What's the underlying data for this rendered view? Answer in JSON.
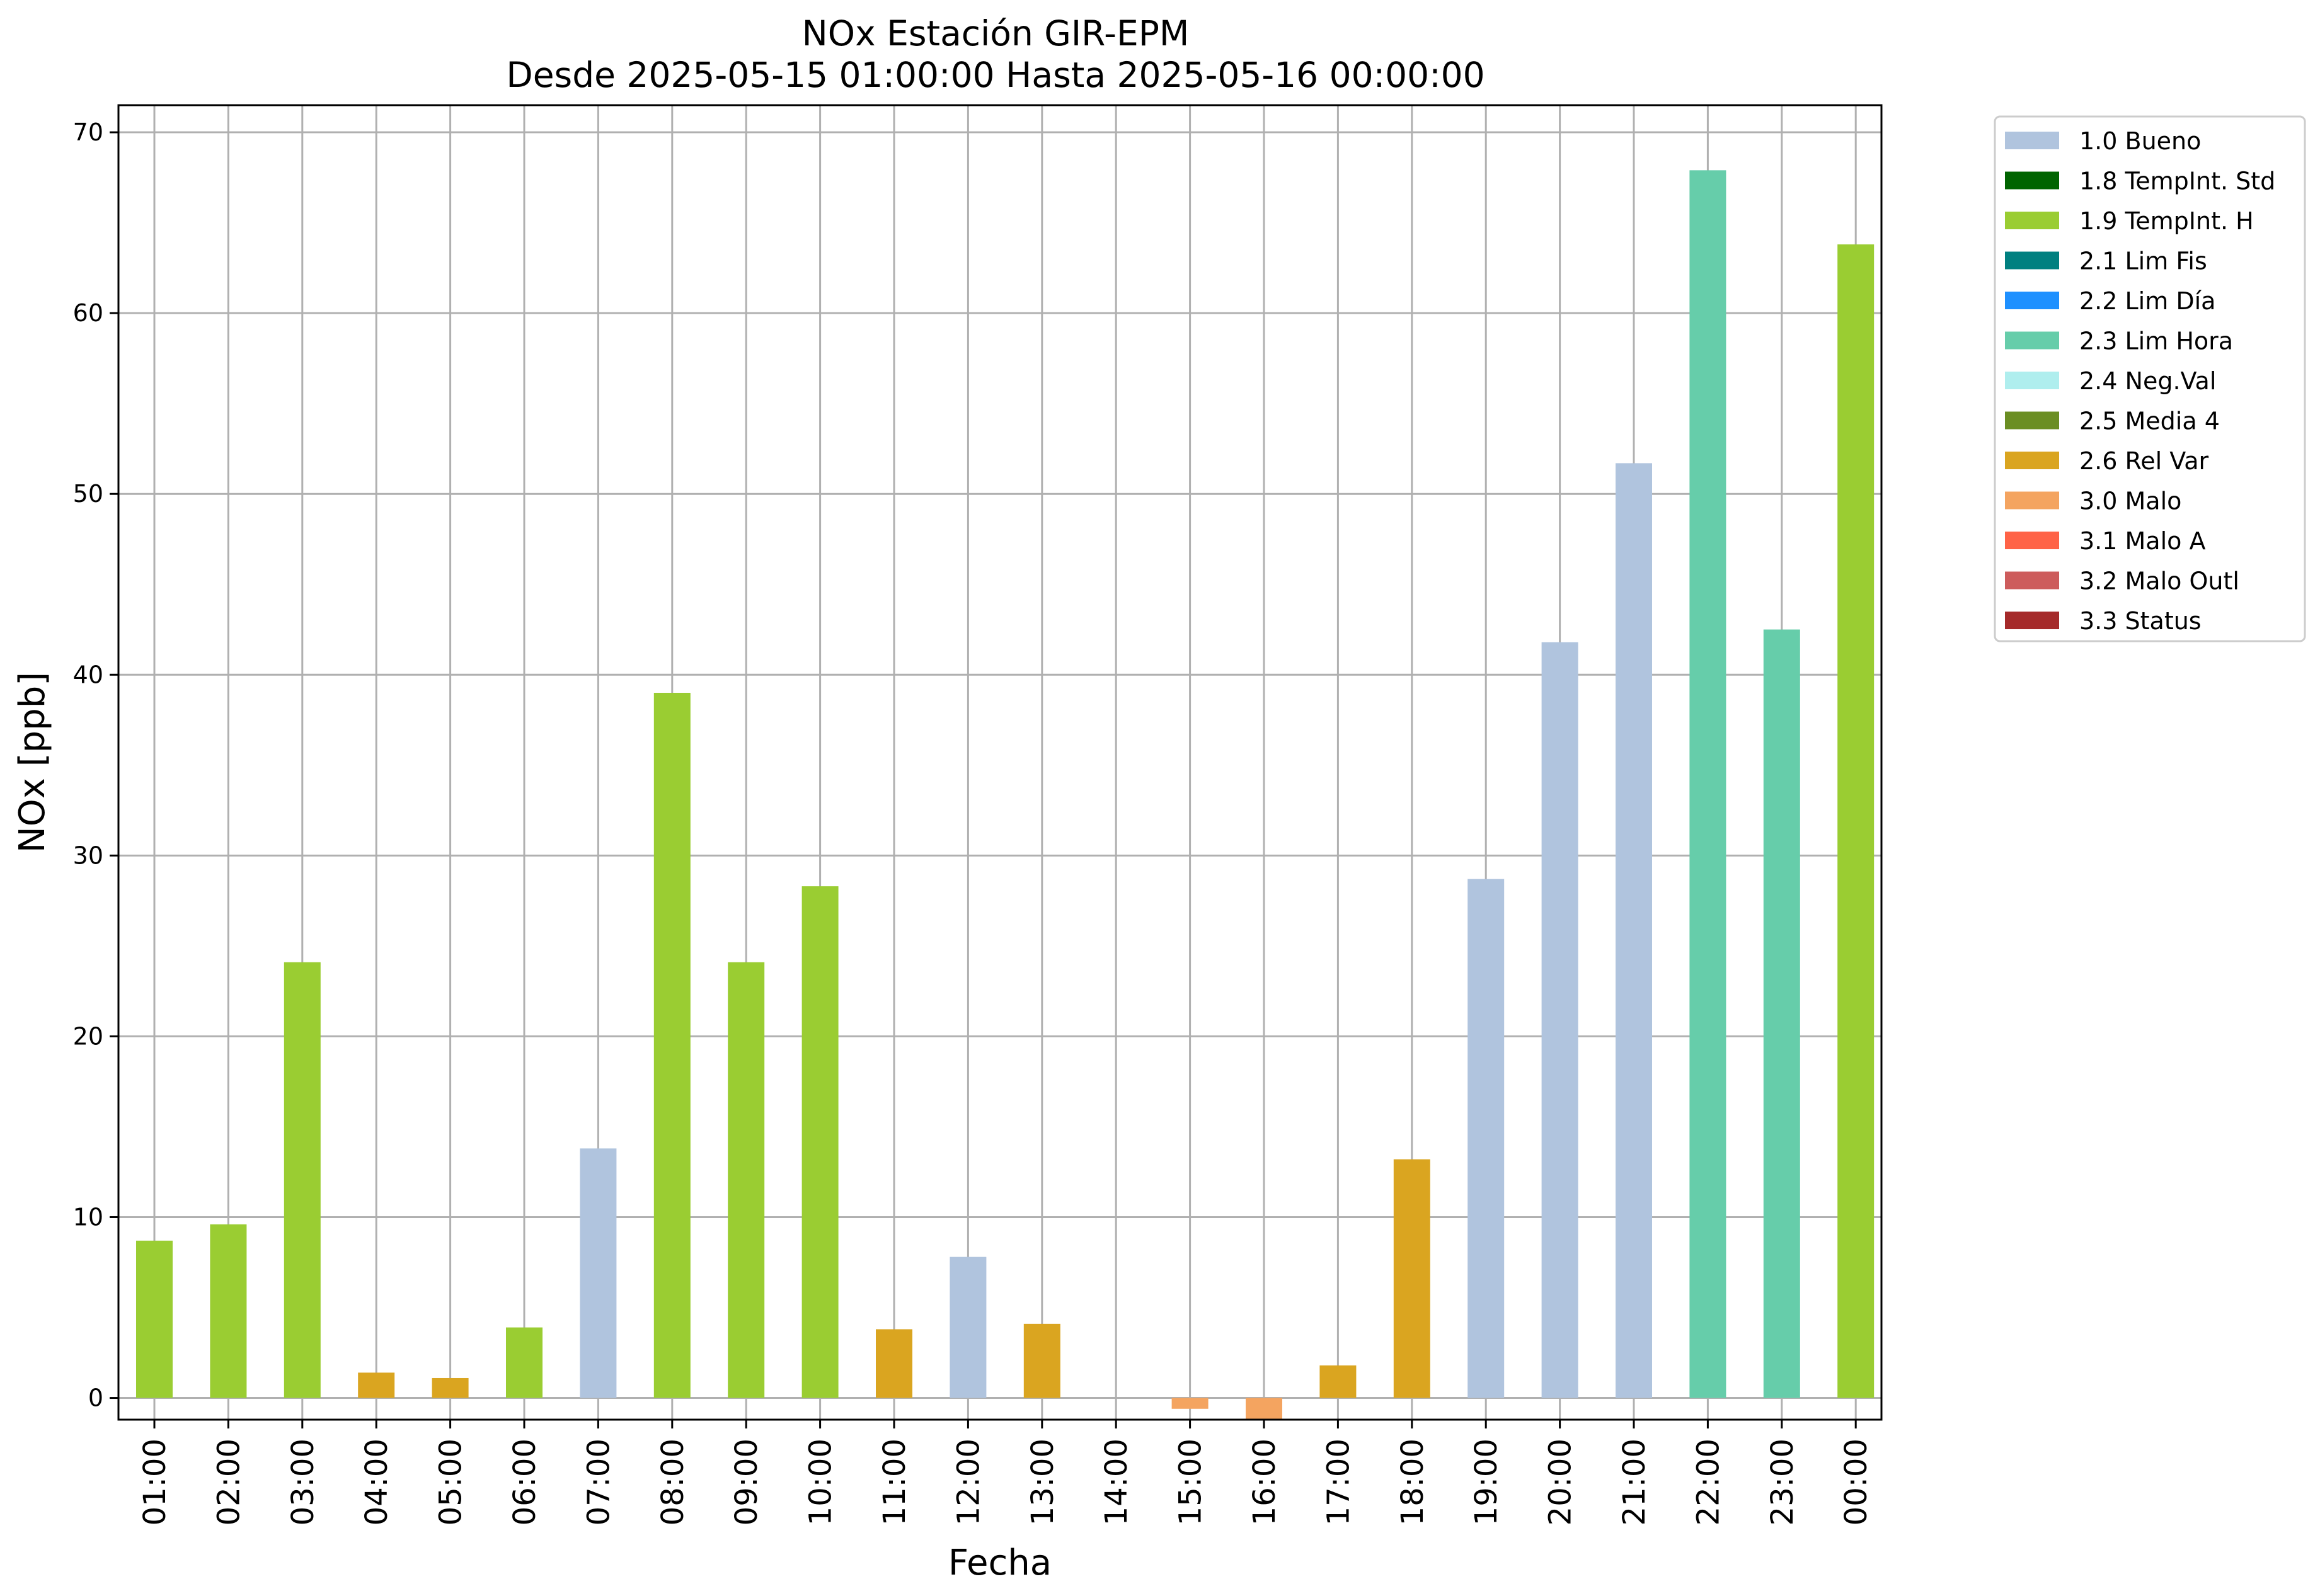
{
  "chart_data": {
    "type": "bar",
    "title_lines": [
      "NOx Estación GIR-EPM",
      "Desde 2025-05-15 01:00:00 Hasta 2025-05-16 00:00:00"
    ],
    "xlabel": "Fecha",
    "ylabel": "NOx [ppb]",
    "ylim": [
      -1.2,
      71.5
    ],
    "yticks": [
      0,
      10,
      20,
      30,
      40,
      50,
      60,
      70
    ],
    "grid": true,
    "legend_position": "upper right, outside plot",
    "categories": [
      "01:00",
      "02:00",
      "03:00",
      "04:00",
      "05:00",
      "06:00",
      "07:00",
      "08:00",
      "09:00",
      "10:00",
      "11:00",
      "12:00",
      "13:00",
      "14:00",
      "15:00",
      "16:00",
      "17:00",
      "18:00",
      "19:00",
      "20:00",
      "21:00",
      "22:00",
      "23:00",
      "00:00"
    ],
    "values": [
      8.7,
      9.6,
      24.1,
      1.4,
      1.1,
      3.9,
      13.8,
      39.0,
      24.1,
      28.3,
      3.8,
      7.8,
      4.1,
      null,
      -0.6,
      -1.2,
      1.8,
      13.2,
      28.7,
      41.8,
      51.7,
      67.9,
      42.5,
      63.8
    ],
    "flags": [
      "1.9 TempInt. H",
      "1.9 TempInt. H",
      "1.9 TempInt. H",
      "2.6 Rel Var",
      "2.6 Rel Var",
      "1.9 TempInt. H",
      "1.0 Bueno",
      "1.9 TempInt. H",
      "1.9 TempInt. H",
      "1.9 TempInt. H",
      "2.6 Rel Var",
      "1.0 Bueno",
      "2.6 Rel Var",
      null,
      "3.0 Malo",
      "3.0 Malo",
      "2.6 Rel Var",
      "2.6 Rel Var",
      "1.0 Bueno",
      "1.0 Bueno",
      "1.0 Bueno",
      "2.3 Lim Hora",
      "2.3 Lim Hora",
      "1.9 TempInt. H"
    ],
    "legend": [
      {
        "label": "1.0 Bueno",
        "color": "#b0c4de"
      },
      {
        "label": "1.8 TempInt. Std",
        "color": "#006400"
      },
      {
        "label": "1.9 TempInt. H",
        "color": "#9acd32"
      },
      {
        "label": "2.1 Lim Fis",
        "color": "#008080"
      },
      {
        "label": "2.2 Lim Día",
        "color": "#1e90ff"
      },
      {
        "label": "2.3 Lim Hora",
        "color": "#66cdaa"
      },
      {
        "label": "2.4 Neg.Val",
        "color": "#afeeee"
      },
      {
        "label": "2.5 Media 4",
        "color": "#6b8e23"
      },
      {
        "label": "2.6 Rel Var",
        "color": "#daa520"
      },
      {
        "label": "3.0 Malo",
        "color": "#f4a460"
      },
      {
        "label": "3.1 Malo A",
        "color": "#ff6347"
      },
      {
        "label": "3.2 Malo Outl",
        "color": "#cd5c5c"
      },
      {
        "label": "3.3 Status",
        "color": "#a52a2a"
      }
    ]
  }
}
